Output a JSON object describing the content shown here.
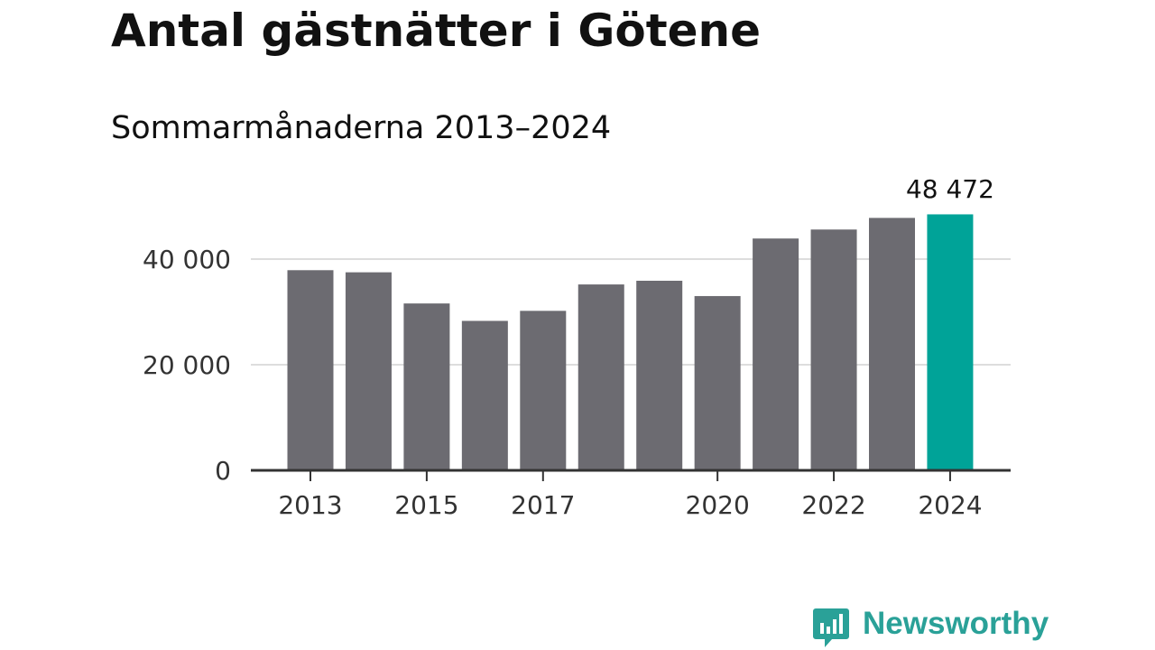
{
  "header": {
    "title": "Antal gästnätter i Götene",
    "subtitle": "Sommarmånaderna 2013–2024"
  },
  "chart_data": {
    "type": "bar",
    "categories": [
      "2013",
      "2014",
      "2015",
      "2016",
      "2017",
      "2018",
      "2019",
      "2020",
      "2021",
      "2022",
      "2023",
      "2024"
    ],
    "values": [
      37900,
      37500,
      31600,
      28300,
      30200,
      35200,
      35900,
      33000,
      43900,
      45600,
      47800,
      48472
    ],
    "x_tick_labels": [
      "2013",
      "2015",
      "2017",
      "2020",
      "2022",
      "2024"
    ],
    "y_ticks": [
      0,
      20000,
      40000
    ],
    "y_tick_labels": [
      "0",
      "20 000",
      "40 000"
    ],
    "ylim": [
      0,
      50000
    ],
    "grid": true,
    "highlight": {
      "category": "2024",
      "label": "48 472",
      "color": "#00a398"
    },
    "bar_color": "#6c6b71",
    "gridline_color": "#dddddd",
    "axis_color": "#333333"
  },
  "brand": {
    "name": "Newsworthy",
    "color": "#2aa198",
    "icon": "newsworthy-logo-icon"
  }
}
